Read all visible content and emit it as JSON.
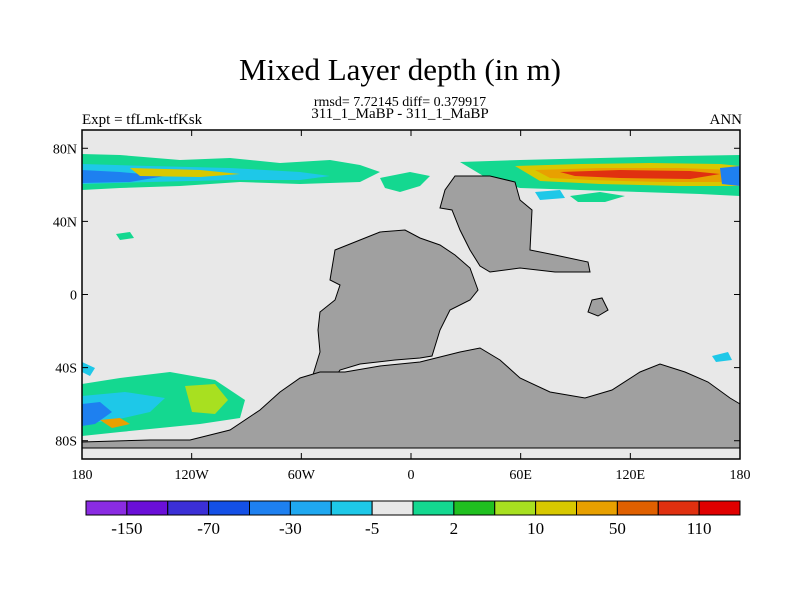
{
  "chart_data": {
    "type": "heatmap",
    "title": "Mixed Layer depth (in m)",
    "stats_line": "rmsd= 7.72145 diff= 0.379917",
    "subtitle": "311_1_MaBP - 311_1_MaBP",
    "left_label": "Expt = tfLmk-tfKsk",
    "right_label": "ANN",
    "x_axis": {
      "range": [
        -180,
        180
      ],
      "ticks": [
        {
          "value": -180,
          "label": "180"
        },
        {
          "value": -120,
          "label": "120W"
        },
        {
          "value": -60,
          "label": "60W"
        },
        {
          "value": 0,
          "label": "0"
        },
        {
          "value": 60,
          "label": "60E"
        },
        {
          "value": 120,
          "label": "120E"
        },
        {
          "value": 180,
          "label": "180"
        }
      ]
    },
    "y_axis": {
      "range": [
        -90,
        90
      ],
      "ticks": [
        {
          "value": 80,
          "label": "80N"
        },
        {
          "value": 40,
          "label": "40N"
        },
        {
          "value": 0,
          "label": "0"
        },
        {
          "value": -40,
          "label": "40S"
        },
        {
          "value": -80,
          "label": "80S"
        }
      ]
    },
    "colorbar": {
      "colors": [
        "#8a2be2",
        "#6a0fd8",
        "#3b2fd6",
        "#1450e6",
        "#1e80f0",
        "#1fa8f0",
        "#1ec8e8",
        "#e8e8e8",
        "#14d890",
        "#20c020",
        "#a8e020",
        "#d8c800",
        "#e8a000",
        "#e06000",
        "#e03010",
        "#e00000"
      ],
      "labels": [
        "-150",
        "-70",
        "-30",
        "-5",
        "2",
        "10",
        "50",
        "110"
      ]
    },
    "land_mask_color": "#a0a0a0",
    "ocean_background_color": "#e8e8e8"
  }
}
